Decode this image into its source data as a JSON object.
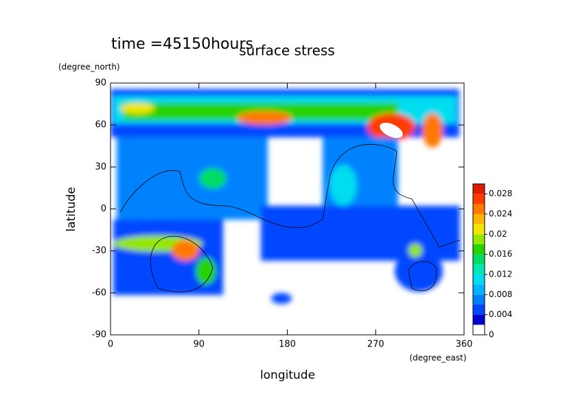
{
  "chart_data": {
    "type": "contour",
    "title": "surface stress",
    "subtitle": "time =45150hours",
    "x_label": "longitude",
    "y_label": "latitude",
    "x_units": "(degree_east)",
    "y_units": "(degree_north)",
    "xlim": [
      0,
      360
    ],
    "ylim": [
      -90,
      90
    ],
    "xticks": [
      0,
      90,
      180,
      270,
      360
    ],
    "yticks": [
      -90,
      -60,
      -30,
      0,
      30,
      60,
      90
    ],
    "colorbar": {
      "lim": [
        0,
        0.03
      ],
      "ticks": [
        0,
        0.004,
        0.008,
        0.012,
        0.016,
        0.02,
        0.024,
        0.028
      ],
      "levels": [
        0,
        0.002,
        0.004,
        0.006,
        0.008,
        0.01,
        0.012,
        0.014,
        0.016,
        0.018,
        0.02,
        0.022,
        0.024,
        0.026,
        0.028,
        0.03
      ],
      "colors": [
        "#ffffff",
        "#0000cd",
        "#0046ff",
        "#0082ff",
        "#00b4ff",
        "#00dcf0",
        "#00e6b4",
        "#00dc64",
        "#28d200",
        "#96e600",
        "#f0e600",
        "#ffb400",
        "#ff7800",
        "#ff3c00",
        "#dc1e00"
      ]
    }
  }
}
